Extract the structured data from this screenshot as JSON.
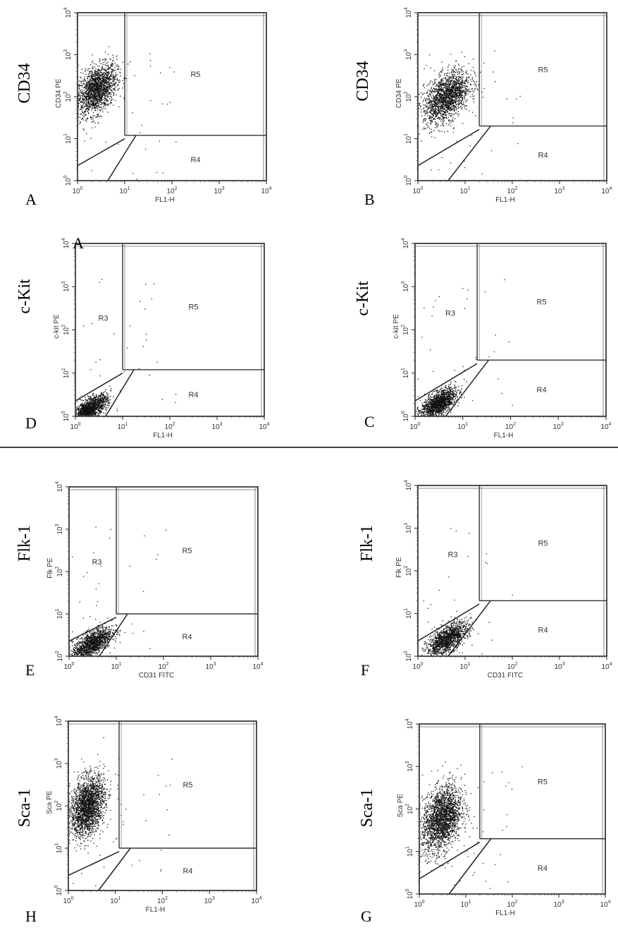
{
  "chart_data": [
    {
      "type": "scatter",
      "panel_letter": "A",
      "marker_label": "CD34",
      "axis_title_y": "CD34 PE",
      "axis_title_x": "FL1-H",
      "x_scale": "log",
      "y_scale": "log",
      "xlim": [
        1,
        10000
      ],
      "ylim": [
        1,
        10000
      ],
      "x_tick_labels": [
        "10^0",
        "10^1",
        "10^2",
        "10^3",
        "10^4"
      ],
      "y_tick_labels": [
        "10^0",
        "10^1",
        "10^2",
        "10^3",
        "10^4"
      ],
      "gates": [
        {
          "name": "R5",
          "x_range": [
            10,
            10000
          ],
          "y_range": [
            12,
            10000
          ]
        },
        {
          "name": "R4",
          "x_range": [
            10,
            10000
          ],
          "y_range": [
            1,
            12
          ]
        }
      ],
      "regions": [
        "R5",
        "R4"
      ],
      "point_clouds": [
        {
          "x_center": 2.5,
          "y_center": 150,
          "x_spread_decades": 0.35,
          "y_spread_decades": 0.45,
          "count": 1800
        }
      ]
    },
    {
      "type": "scatter",
      "panel_letter": "B",
      "marker_label": "CD34",
      "axis_title_y": "CD34 PE",
      "axis_title_x": "FL1-H",
      "x_scale": "log",
      "y_scale": "log",
      "xlim": [
        1,
        10000
      ],
      "ylim": [
        1,
        10000
      ],
      "x_tick_labels": [
        "10^0",
        "10^1",
        "10^2",
        "10^3",
        "10^4"
      ],
      "y_tick_labels": [
        "10^0",
        "10^1",
        "10^2",
        "10^3",
        "10^4"
      ],
      "gates": [
        {
          "name": "R5",
          "x_range": [
            20,
            10000
          ],
          "y_range": [
            20,
            10000
          ]
        },
        {
          "name": "R4",
          "x_range": [
            20,
            10000
          ],
          "y_range": [
            1,
            20
          ]
        }
      ],
      "regions": [
        "R5",
        "R4"
      ],
      "point_clouds": [
        {
          "x_center": 4,
          "y_center": 100,
          "x_spread_decades": 0.4,
          "y_spread_decades": 0.45,
          "count": 1800
        }
      ]
    },
    {
      "type": "scatter",
      "panel_letter": "D",
      "stray_label": "A",
      "marker_label": "c-Kit",
      "axis_title_y": "c-kit PE",
      "axis_title_x": "FL1-H",
      "x_scale": "log",
      "y_scale": "log",
      "xlim": [
        1,
        10000
      ],
      "ylim": [
        1,
        10000
      ],
      "x_tick_labels": [
        "10^0",
        "10^1",
        "10^2",
        "10^3",
        "10^4"
      ],
      "y_tick_labels": [
        "10^0",
        "10^1",
        "10^2",
        "10^3",
        "10^4"
      ],
      "gates": [
        {
          "name": "R5",
          "x_range": [
            10,
            10000
          ],
          "y_range": [
            12,
            10000
          ]
        },
        {
          "name": "R4",
          "x_range": [
            10,
            10000
          ],
          "y_range": [
            1,
            12
          ]
        }
      ],
      "regions": [
        "R3",
        "R5",
        "R4"
      ],
      "point_clouds": [
        {
          "x_center": 2,
          "y_center": 1.5,
          "x_spread_decades": 0.3,
          "y_spread_decades": 0.2,
          "count": 1500
        }
      ]
    },
    {
      "type": "scatter",
      "panel_letter": "C",
      "marker_label": "c-Kit",
      "axis_title_y": "c-kit PE",
      "axis_title_x": "FL1-H",
      "x_scale": "log",
      "y_scale": "log",
      "xlim": [
        1,
        10000
      ],
      "ylim": [
        1,
        10000
      ],
      "x_tick_labels": [
        "10^0",
        "10^1",
        "10^2",
        "10^3",
        "10^4"
      ],
      "y_tick_labels": [
        "10^0",
        "10^1",
        "10^2",
        "10^3",
        "10^4"
      ],
      "gates": [
        {
          "name": "R5",
          "x_range": [
            20,
            10000
          ],
          "y_range": [
            20,
            10000
          ]
        },
        {
          "name": "R4",
          "x_range": [
            20,
            10000
          ],
          "y_range": [
            1,
            20
          ]
        }
      ],
      "regions": [
        "R3",
        "R5",
        "R4"
      ],
      "point_clouds": [
        {
          "x_center": 3,
          "y_center": 2,
          "x_spread_decades": 0.3,
          "y_spread_decades": 0.22,
          "count": 1500
        }
      ]
    },
    {
      "type": "scatter",
      "panel_letter": "E",
      "marker_label": "Flk-1",
      "axis_title_y": "Flk PE",
      "axis_title_x": "CD31 FITC",
      "x_scale": "log",
      "y_scale": "log",
      "xlim": [
        1,
        10000
      ],
      "ylim": [
        1,
        10000
      ],
      "x_tick_labels": [
        "10^0",
        "10^1",
        "10^2",
        "10^3",
        "10^4"
      ],
      "y_tick_labels": [
        "10^0",
        "10^1",
        "10^2",
        "10^3",
        "10^4"
      ],
      "gates": [
        {
          "name": "R5",
          "x_range": [
            10,
            10000
          ],
          "y_range": [
            10,
            10000
          ]
        },
        {
          "name": "R4",
          "x_range": [
            10,
            10000
          ],
          "y_range": [
            1,
            10
          ]
        }
      ],
      "regions": [
        "R3",
        "R5",
        "R4"
      ],
      "point_clouds": [
        {
          "x_center": 3,
          "y_center": 2,
          "x_spread_decades": 0.35,
          "y_spread_decades": 0.25,
          "count": 1400
        }
      ]
    },
    {
      "type": "scatter",
      "panel_letter": "F",
      "marker_label": "Flk-1",
      "axis_title_y": "Flk PE",
      "axis_title_x": "CD31 FITC",
      "x_scale": "log",
      "y_scale": "log",
      "xlim": [
        1,
        10000
      ],
      "ylim": [
        1,
        10000
      ],
      "x_tick_labels": [
        "10^0",
        "10^1",
        "10^2",
        "10^3",
        "10^4"
      ],
      "y_tick_labels": [
        "10^0",
        "10^1",
        "10^2",
        "10^3",
        "10^4"
      ],
      "gates": [
        {
          "name": "R5",
          "x_range": [
            20,
            10000
          ],
          "y_range": [
            20,
            10000
          ]
        },
        {
          "name": "R4",
          "x_range": [
            20,
            10000
          ],
          "y_range": [
            1,
            20
          ]
        }
      ],
      "regions": [
        "R3",
        "R5",
        "R4"
      ],
      "point_clouds": [
        {
          "x_center": 4,
          "y_center": 2.5,
          "x_spread_decades": 0.35,
          "y_spread_decades": 0.25,
          "count": 1400
        }
      ]
    },
    {
      "type": "scatter",
      "panel_letter": "H",
      "marker_label": "Sca-1",
      "axis_title_y": "Sca PE",
      "axis_title_x": "FL1-H",
      "x_scale": "log",
      "y_scale": "log",
      "xlim": [
        1,
        10000
      ],
      "ylim": [
        1,
        10000
      ],
      "x_tick_labels": [
        "10^0",
        "10^1",
        "10^2",
        "10^3",
        "10^4"
      ],
      "y_tick_labels": [
        "10^0",
        "10^1",
        "10^2",
        "10^3",
        "10^4"
      ],
      "gates": [
        {
          "name": "R5",
          "x_range": [
            12,
            10000
          ],
          "y_range": [
            10,
            10000
          ]
        },
        {
          "name": "R4",
          "x_range": [
            12,
            10000
          ],
          "y_range": [
            1,
            10
          ]
        }
      ],
      "regions": [
        "R5",
        "R4"
      ],
      "point_clouds": [
        {
          "x_center": 2.5,
          "y_center": 100,
          "x_spread_decades": 0.3,
          "y_spread_decades": 0.55,
          "count": 2200
        }
      ]
    },
    {
      "type": "scatter",
      "panel_letter": "G",
      "marker_label": "Sca-1",
      "axis_title_y": "Sca PE",
      "axis_title_x": "FL1-H",
      "x_scale": "log",
      "y_scale": "log",
      "xlim": [
        1,
        10000
      ],
      "ylim": [
        1,
        10000
      ],
      "x_tick_labels": [
        "10^0",
        "10^1",
        "10^2",
        "10^3",
        "10^4"
      ],
      "y_tick_labels": [
        "10^0",
        "10^1",
        "10^2",
        "10^3",
        "10^4"
      ],
      "gates": [
        {
          "name": "R5",
          "x_range": [
            20,
            10000
          ],
          "y_range": [
            20,
            10000
          ]
        },
        {
          "name": "R4",
          "x_range": [
            20,
            10000
          ],
          "y_range": [
            1,
            20
          ]
        }
      ],
      "regions": [
        "R5",
        "R4"
      ],
      "point_clouds": [
        {
          "x_center": 3,
          "y_center": 60,
          "x_spread_decades": 0.35,
          "y_spread_decades": 0.6,
          "count": 2200
        }
      ]
    }
  ]
}
